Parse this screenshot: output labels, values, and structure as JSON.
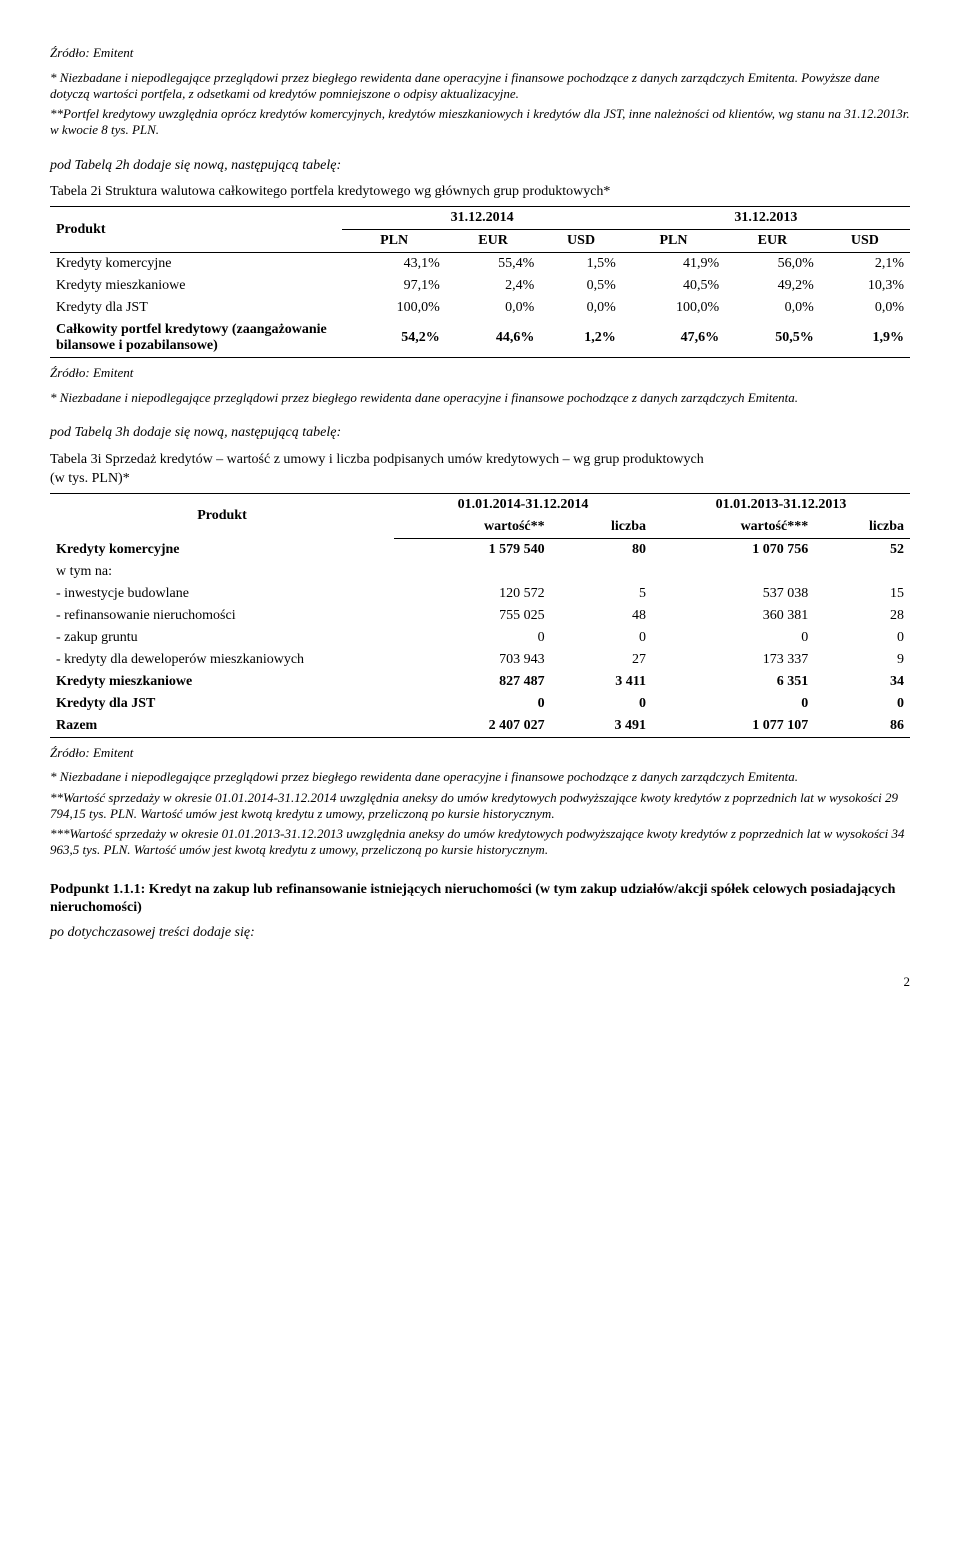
{
  "source_label": "Źródło: Emitent",
  "footnote_star": "* Niezbadane i niepodlegające przeglądowi  przez biegłego rewidenta dane operacyjne i finansowe pochodzące z danych zarządczych Emitenta. Powyższe dane dotyczą wartości portfela, z odsetkami od kredytów pomniejszone o odpisy aktualizacyjne.",
  "footnote_dstar": "**Portfel kredytowy uwzględnia oprócz kredytów komercyjnych, kredytów mieszkaniowych i kredytów dla JST,  inne należności od klientów, wg stanu na 31.12.2013r. w kwocie 8  tys. PLN.",
  "intro_2h": "pod Tabelą 2h dodaje się nową, następującą tabelę:",
  "table2i": {
    "caption": "Tabela 2i Struktura walutowa całkowitego portfela kredytowego wg głównych grup produktowych*",
    "product_header": "Produkt",
    "period1": "31.12.2014",
    "period2": "31.12.2013",
    "cols": [
      "PLN",
      "EUR",
      "USD",
      "PLN",
      "EUR",
      "USD"
    ],
    "rows": [
      {
        "label": "Kredyty komercyjne",
        "vals": [
          "43,1%",
          "55,4%",
          "1,5%",
          "41,9%",
          "56,0%",
          "2,1%"
        ],
        "bold": false
      },
      {
        "label": "Kredyty mieszkaniowe",
        "vals": [
          "97,1%",
          "2,4%",
          "0,5%",
          "40,5%",
          "49,2%",
          "10,3%"
        ],
        "bold": false
      },
      {
        "label": "Kredyty dla JST",
        "vals": [
          "100,0%",
          "0,0%",
          "0,0%",
          "100,0%",
          "0,0%",
          "0,0%"
        ],
        "bold": false
      },
      {
        "label": "Całkowity portfel kredytowy (zaangażowanie bilansowe i pozabilansowe)",
        "vals": [
          "54,2%",
          "44,6%",
          "1,2%",
          "47,6%",
          "50,5%",
          "1,9%"
        ],
        "bold": true
      }
    ]
  },
  "footnote_star_short": "* Niezbadane i niepodlegające przeglądowi  przez biegłego rewidenta dane operacyjne i finansowe pochodzące z danych zarządczych Emitenta.",
  "intro_3h": "pod Tabelą 3h dodaje się nową, następującą tabelę:",
  "table3i": {
    "caption": "Tabela 3i Sprzedaż kredytów – wartość z umowy i liczba podpisanych umów kredytowych – wg grup produktowych",
    "unit": "(w tys. PLN)*",
    "product_header": "Produkt",
    "period1": "01.01.2014-31.12.2014",
    "period2": "01.01.2013-31.12.2013",
    "sub1a": "wartość**",
    "sub1b": "liczba",
    "sub2a": "wartość***",
    "sub2b": "liczba",
    "rows": [
      {
        "label": "Kredyty komercyjne",
        "vals": [
          "1 579 540",
          "80",
          "1 070 756",
          "52"
        ],
        "bold": true
      },
      {
        "label": "w tym na:",
        "vals": [
          "",
          "",
          "",
          ""
        ],
        "bold": false,
        "sub": true,
        "noborder": true
      },
      {
        "label": "- inwestycje budowlane",
        "vals": [
          "120 572",
          "5",
          "537 038",
          "15"
        ],
        "bold": false,
        "sub": true
      },
      {
        "label": "- refinansowanie nieruchomości",
        "vals": [
          "755 025",
          "48",
          "360 381",
          "28"
        ],
        "bold": false,
        "sub": true
      },
      {
        "label": "- zakup gruntu",
        "vals": [
          "0",
          "0",
          "0",
          "0"
        ],
        "bold": false,
        "sub": true
      },
      {
        "label": "- kredyty dla deweloperów mieszkaniowych",
        "vals": [
          "703 943",
          "27",
          "173 337",
          "9"
        ],
        "bold": false,
        "sub": true
      },
      {
        "label": "Kredyty mieszkaniowe",
        "vals": [
          "827 487",
          "3 411",
          "6 351",
          "34"
        ],
        "bold": true
      },
      {
        "label": "Kredyty dla JST",
        "vals": [
          "0",
          "0",
          "0",
          "0"
        ],
        "bold": true
      },
      {
        "label": "Razem",
        "vals": [
          "2 407 027",
          "3 491",
          "1 077 107",
          "86"
        ],
        "bold": true
      }
    ]
  },
  "footnote3_star": "* Niezbadane i niepodlegające przeglądowi  przez biegłego rewidenta dane operacyjne i finansowe pochodzące z danych zarządczych Emitenta.",
  "footnote3_dstar": "**Wartość sprzedaży w okresie 01.01.2014-31.12.2014 uwzględnia aneksy do umów kredytowych podwyższające kwoty kredytów z poprzednich lat w wysokości 29 794,15 tys. PLN. Wartość umów jest kwotą kredytu z umowy, przeliczoną po kursie historycznym.",
  "footnote3_tstar": "***Wartość sprzedaży w okresie 01.01.2013-31.12.2013 uwzględnia aneksy do umów kredytowych podwyższające kwoty kredytów z poprzednich lat w wysokości 34 963,5 tys. PLN. Wartość umów jest kwotą kredytu z umowy, przeliczoną po kursie historycznym.",
  "heading_111": "Podpunkt 1.1.1: Kredyt na zakup lub refinansowanie istniejących nieruchomości (w tym zakup udziałów/akcji spółek celowych posiadających nieruchomości)",
  "after_heading": "po dotychczasowej treści dodaje się:",
  "page_number": "2"
}
